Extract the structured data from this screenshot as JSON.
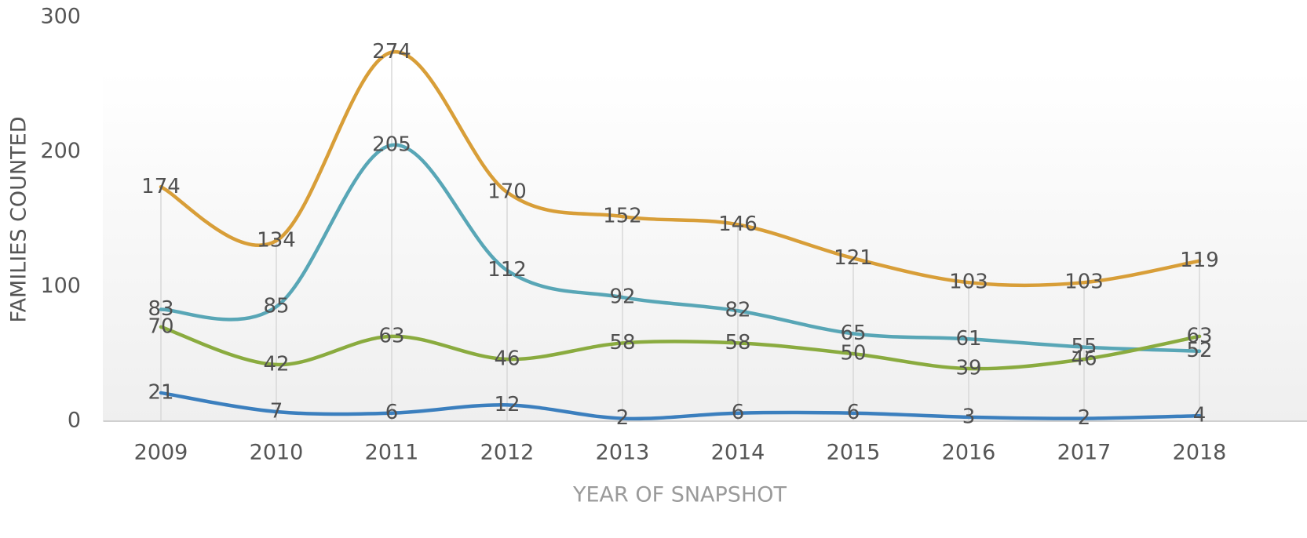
{
  "chart_data": {
    "type": "line",
    "categories": [
      "2009",
      "2010",
      "2011",
      "2012",
      "2013",
      "2014",
      "2015",
      "2016",
      "2017",
      "2018"
    ],
    "series": [
      {
        "color": "#d89e38",
        "values": [
          174,
          134,
          274,
          170,
          152,
          146,
          121,
          103,
          103,
          119
        ]
      },
      {
        "color": "#58a6b6",
        "values": [
          83,
          85,
          205,
          112,
          92,
          82,
          65,
          61,
          55,
          52
        ]
      },
      {
        "color": "#8aab3f",
        "values": [
          70,
          42,
          63,
          46,
          58,
          58,
          50,
          39,
          46,
          63
        ]
      },
      {
        "color": "#3b7fbe",
        "values": [
          21,
          7,
          6,
          12,
          2,
          6,
          6,
          3,
          2,
          4
        ]
      }
    ],
    "ylim": [
      0,
      300
    ],
    "yticks": [
      0,
      100,
      200,
      300
    ],
    "y_label": "FAMILIES COUNTED",
    "x_label": "YEAR OF SNAPSHOT",
    "smooth": true,
    "data_labels": true
  }
}
